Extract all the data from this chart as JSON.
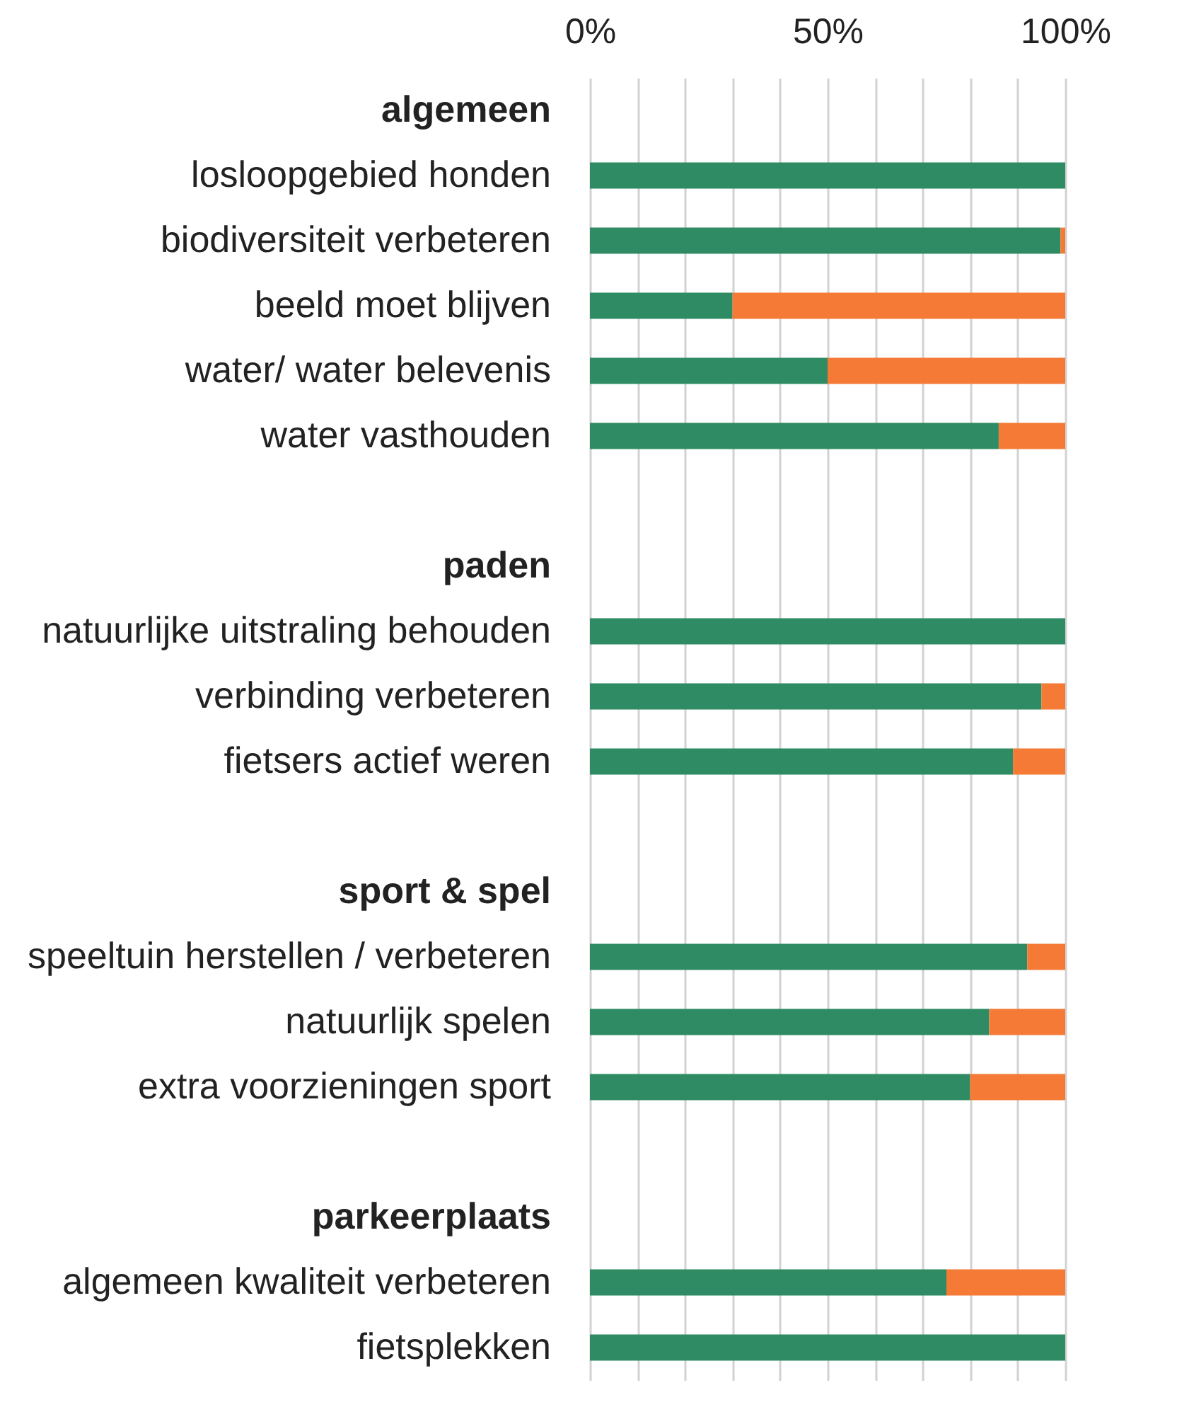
{
  "chart_data": {
    "type": "bar",
    "orientation": "horizontal",
    "stacked": true,
    "categories": [
      "algemeen",
      "losloopgebied honden",
      "biodiversiteit verbeteren",
      "beeld moet blijven",
      "water/ water belevenis",
      "water vasthouden",
      null,
      "paden",
      "natuurlijke uitstraling behouden",
      "verbinding verbeteren",
      "fietsers actief weren",
      null,
      "sport & spel",
      "speeltuin herstellen / verbeteren",
      "natuurlijk spelen",
      "extra voorzieningen sport",
      null,
      "parkeerplaats",
      "algemeen kwaliteit verbeteren",
      "fietsplekken"
    ],
    "series": [
      {
        "color": "#2e8b63",
        "values": [
          null,
          100,
          99,
          30,
          50,
          86,
          null,
          null,
          100,
          95,
          89,
          null,
          null,
          92,
          84,
          80,
          null,
          null,
          75,
          100
        ]
      },
      {
        "color": "#f47a36",
        "values": [
          null,
          0,
          1,
          70,
          50,
          14,
          null,
          null,
          0,
          5,
          11,
          null,
          null,
          8,
          16,
          20,
          null,
          null,
          25,
          0
        ]
      }
    ],
    "xlim": [
      0,
      100
    ],
    "xticks": [
      {
        "value": 0,
        "label": "0%"
      },
      {
        "value": 10,
        "label": null
      },
      {
        "value": 20,
        "label": null
      },
      {
        "value": 30,
        "label": null
      },
      {
        "value": 40,
        "label": null
      },
      {
        "value": 50,
        "label": "50%"
      },
      {
        "value": 60,
        "label": null
      },
      {
        "value": 70,
        "label": null
      },
      {
        "value": 80,
        "label": null
      },
      {
        "value": 90,
        "label": null
      },
      {
        "value": 100,
        "label": "100%"
      }
    ],
    "grid": true,
    "legend": false
  }
}
